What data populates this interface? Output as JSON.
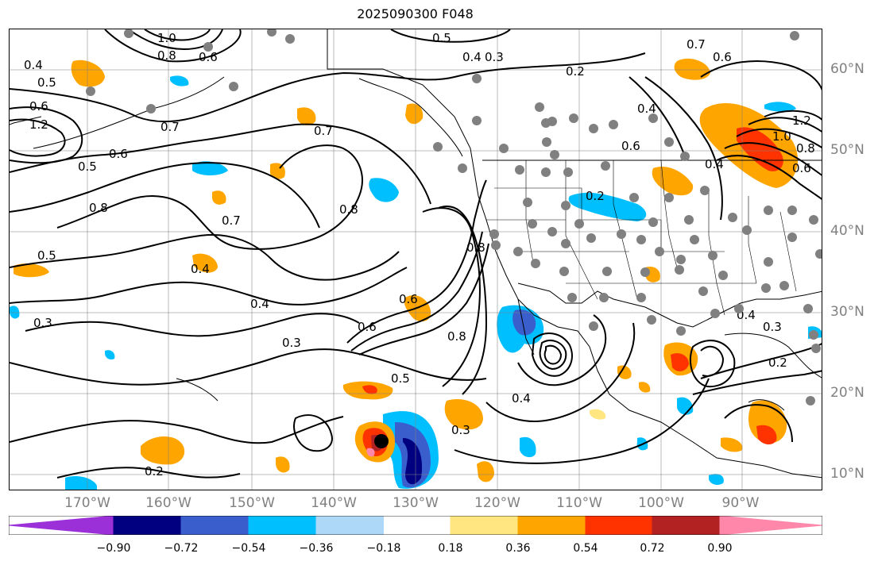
{
  "title": "2025090300 F048",
  "lon_labels": [
    "170°W",
    "160°W",
    "150°W",
    "140°W",
    "130°W",
    "120°W",
    "110°W",
    "100°W",
    "90°W"
  ],
  "lat_labels": [
    "60°N",
    "50°N",
    "40°N",
    "30°N",
    "20°N",
    "10°N"
  ],
  "colorbar": {
    "labels": [
      "−0.90",
      "−0.72",
      "−0.54",
      "−0.36",
      "−0.18",
      "0.18",
      "0.36",
      "0.54",
      "0.72",
      "0.90"
    ],
    "colors": [
      "#9b30d9",
      "#000080",
      "#3a5fcd",
      "#00bfff",
      "#add8f8",
      "#ffffff",
      "#ffe680",
      "#ffa500",
      "#ff3300",
      "#b22222",
      "#ff88aa"
    ]
  },
  "contour_labels": [
    "0.5",
    "0.4",
    "0.3",
    "0.6",
    "0.7",
    "0.8",
    "1.0",
    "0.8",
    "0.6",
    "0.5",
    "0.4",
    "0.3",
    "0.2",
    "0.7",
    "0.8",
    "0.4",
    "0.3",
    "0.2",
    "0.6",
    "0.5",
    "0.4",
    "0.7",
    "0.3",
    "0.4",
    "0.2",
    "0.3",
    "1.2",
    "0.6",
    "0.8",
    "0.5",
    "0.7",
    "0.8",
    "0.6",
    "0.4",
    "0.5",
    "0.6",
    "0.4",
    "0.6",
    "1.0",
    "1.2",
    "0.8",
    "0.6",
    "0.4",
    "0.2"
  ],
  "colors": {
    "contour": "#000000",
    "grid": "#808080",
    "coast": "#000000",
    "station": "#808080",
    "storm_center": "#000000"
  }
}
